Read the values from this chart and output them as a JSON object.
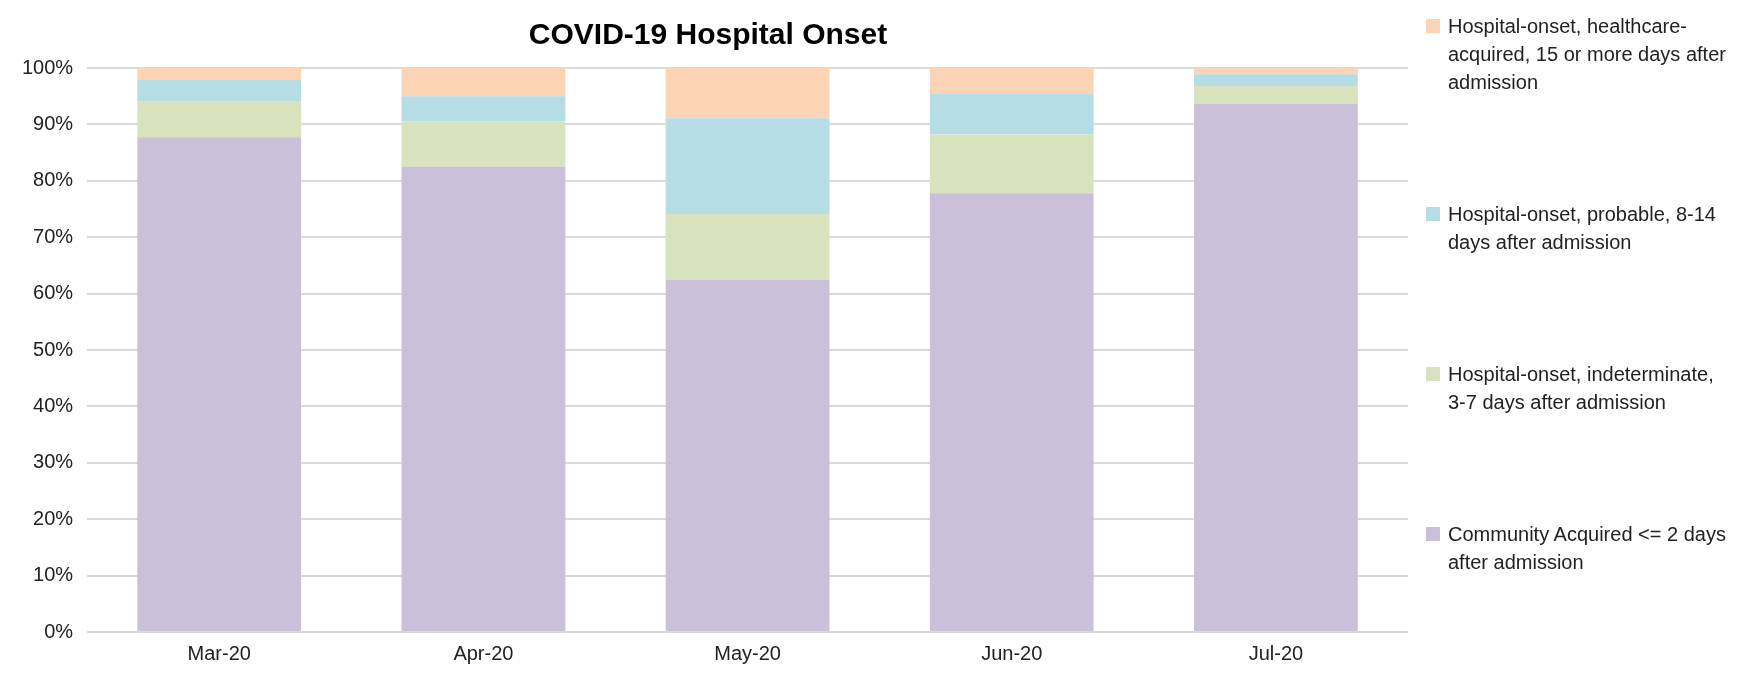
{
  "chart_data": {
    "type": "bar",
    "title": "COVID-19 Hospital Onset",
    "categories": [
      "Mar-20",
      "Apr-20",
      "May-20",
      "Jun-20",
      "Jul-20"
    ],
    "stacked": true,
    "series": [
      {
        "name": "Community Acquired <= 2 days after admission",
        "color": "#cbc0da",
        "values": [
          87.7,
          82.5,
          62.5,
          77.8,
          93.7
        ]
      },
      {
        "name": "Hospital-onset, indeterminate, 3-7 days after admission",
        "color": "#d8e3bd",
        "values": [
          6.3,
          8.0,
          11.6,
          10.4,
          3.1
        ]
      },
      {
        "name": "Hospital-onset, probable, 8-14 days after admission",
        "color": "#b6dce6",
        "values": [
          4.0,
          4.5,
          17.0,
          7.3,
          2.1
        ]
      },
      {
        "name": "Hospital-onset, healthcare-acquired, 15 or more days after admission",
        "color": "#fbd4b5",
        "values": [
          2.0,
          5.0,
          8.9,
          4.5,
          1.1
        ]
      }
    ],
    "ylim": [
      0,
      100
    ],
    "yticks": [
      {
        "value": 0,
        "label": "0%"
      },
      {
        "value": 10,
        "label": "10%"
      },
      {
        "value": 20,
        "label": "20%"
      },
      {
        "value": 30,
        "label": "30%"
      },
      {
        "value": 40,
        "label": "40%"
      },
      {
        "value": 50,
        "label": "50%"
      },
      {
        "value": 60,
        "label": "60%"
      },
      {
        "value": 70,
        "label": "70%"
      },
      {
        "value": 80,
        "label": "80%"
      },
      {
        "value": 90,
        "label": "90%"
      },
      {
        "value": 100,
        "label": "100%"
      }
    ],
    "grid": "y",
    "legend": "right"
  }
}
